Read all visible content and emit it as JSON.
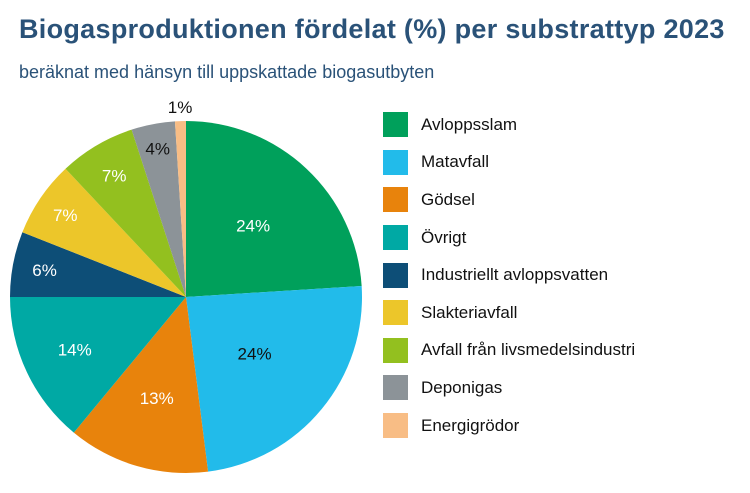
{
  "chart_data": {
    "type": "pie",
    "title": "Biogasproduktionen fördelat (%) per substrattyp 2023",
    "subtitle": "beräknat med hänsyn till uppskattade biogasutbyten",
    "legend_position": "right",
    "start": "top, clockwise",
    "slices": [
      {
        "label": "Avloppsslam",
        "value": 24,
        "display": "24%",
        "color": "#00a05b"
      },
      {
        "label": "Matavfall",
        "value": 24,
        "display": "24%",
        "color": "#22bbea"
      },
      {
        "label": "Gödsel",
        "value": 13,
        "display": "13%",
        "color": "#e8830c"
      },
      {
        "label": "Övrigt",
        "value": 14,
        "display": "14%",
        "color": "#00a9a4"
      },
      {
        "label": "Industriellt avloppsvatten",
        "value": 6,
        "display": "6%",
        "color": "#0d4e77"
      },
      {
        "label": "Slakteriavfall",
        "value": 7,
        "display": "7%",
        "color": "#ecc62a"
      },
      {
        "label": "Avfall från livsmedelsindustri",
        "value": 7,
        "display": "7%",
        "color": "#93c01f"
      },
      {
        "label": "Deponigas",
        "value": 4,
        "display": "4%",
        "color": "#8c9398"
      },
      {
        "label": "Energigrödor",
        "value": 1,
        "display": "1%",
        "color": "#f8bd85"
      }
    ]
  }
}
